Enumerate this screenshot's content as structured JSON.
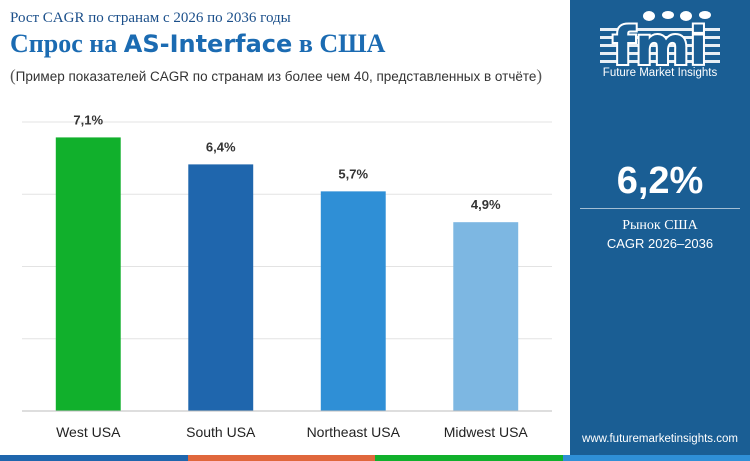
{
  "header": {
    "supertitle": "Рост CAGR по странам с 2026 по 2036 годы",
    "title_part1": "Спрос на ",
    "title_part2": "AS-Interface",
    "title_part3": " в США",
    "subtitle_open": "(",
    "subtitle_text": "Пример показателей CAGR по странам из более чем 40, представленных в отчёте",
    "subtitle_close": ")"
  },
  "chart_data": {
    "type": "bar",
    "categories": [
      "West USA",
      "South USA",
      "Northeast USA",
      "Midwest USA"
    ],
    "values": [
      7.1,
      6.4,
      5.7,
      4.9
    ],
    "value_labels": [
      "7,1%",
      "6,4%",
      "5,7%",
      "4,9%"
    ],
    "ylim": [
      0,
      7.5
    ],
    "grid": true,
    "bar_colors": [
      "#11b02c",
      "#1f66ad",
      "#2f8fd6",
      "#7db7e2"
    ]
  },
  "sidebar": {
    "logo_text": "fmi",
    "logo_caption": "Future Market Insights",
    "headline_value": "6,2%",
    "label_line1": "Рынок США",
    "label_line2": "CAGR 2026–2036",
    "website": "www.futuremarketinsights.com"
  },
  "colors": {
    "sidebar_bg": "#1a5e94",
    "title": "#1b6bb2",
    "strip": [
      "#1f66ad",
      "#e0673c",
      "#11b02c",
      "#2f8fd6"
    ]
  }
}
